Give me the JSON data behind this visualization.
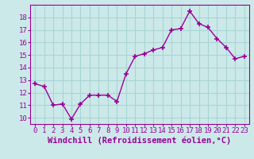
{
  "x": [
    0,
    1,
    2,
    3,
    4,
    5,
    6,
    7,
    8,
    9,
    10,
    11,
    12,
    13,
    14,
    15,
    16,
    17,
    18,
    19,
    20,
    21,
    22,
    23
  ],
  "y": [
    12.7,
    12.5,
    11.0,
    11.1,
    9.9,
    11.1,
    11.8,
    11.8,
    11.8,
    11.3,
    13.5,
    14.9,
    15.1,
    15.4,
    15.6,
    17.0,
    17.1,
    18.5,
    17.5,
    17.2,
    16.3,
    15.6,
    14.7,
    14.9
  ],
  "line_color": "#990099",
  "marker": "+",
  "markersize": 4,
  "markeredgewidth": 1.2,
  "linewidth": 1.0,
  "background_color": "#cce9e9",
  "grid_color": "#aad4d4",
  "xlabel": "Windchill (Refroidissement éolien,°C)",
  "xlabel_fontsize": 7.5,
  "tick_label_color": "#990099",
  "tick_fontsize": 6.5,
  "ylim": [
    9.5,
    19.0
  ],
  "yticks": [
    10,
    11,
    12,
    13,
    14,
    15,
    16,
    17,
    18
  ],
  "xlim": [
    -0.5,
    23.5
  ],
  "xticks": [
    0,
    1,
    2,
    3,
    4,
    5,
    6,
    7,
    8,
    9,
    10,
    11,
    12,
    13,
    14,
    15,
    16,
    17,
    18,
    19,
    20,
    21,
    22,
    23
  ]
}
